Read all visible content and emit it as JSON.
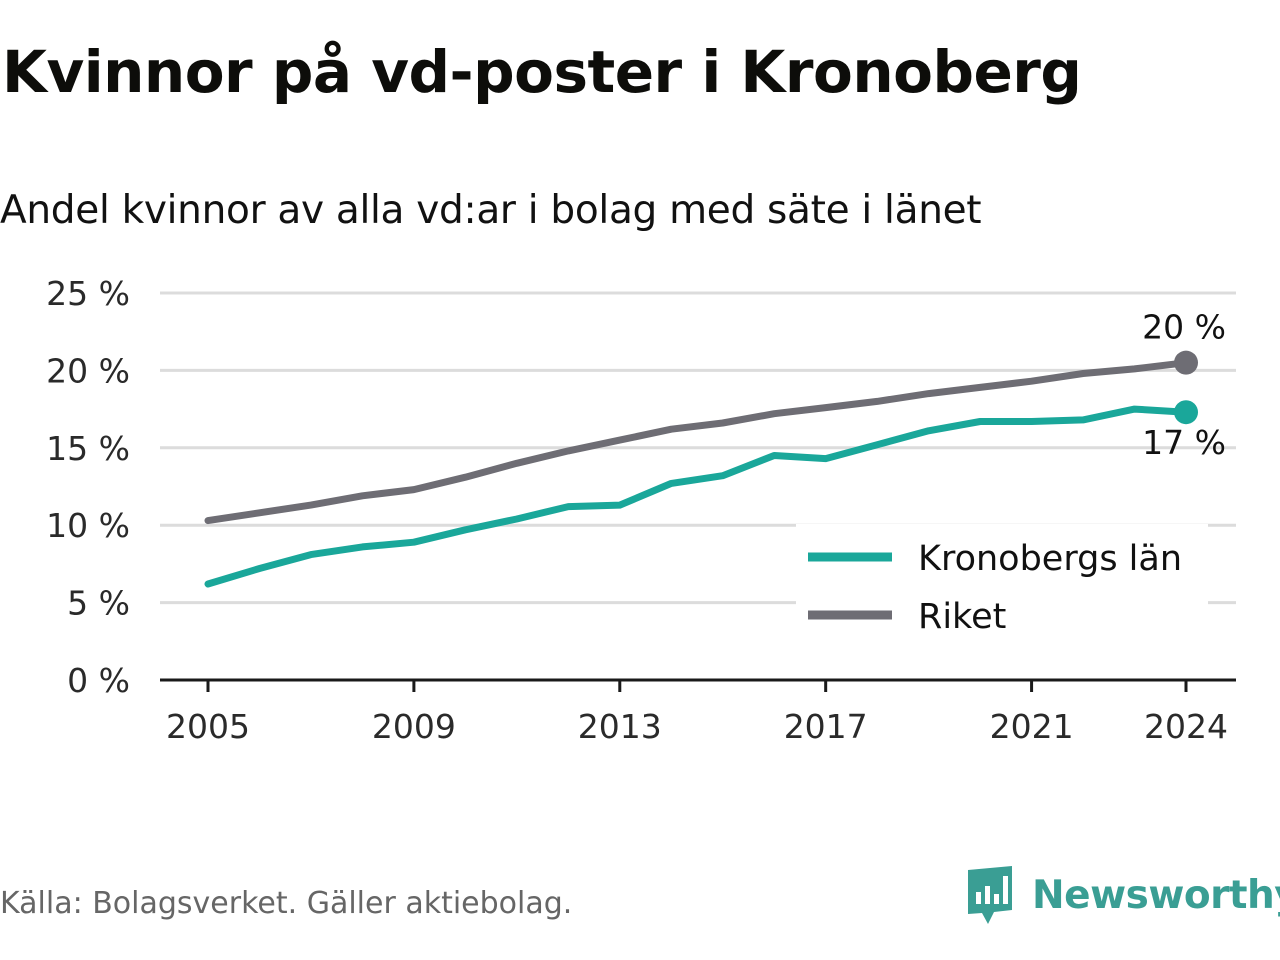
{
  "title": "Kvinnor på vd-poster i Kronoberg",
  "subtitle": "Andel kvinnor av alla vd:ar i bolag med säte i länet",
  "source": "Källa: Bolagsverket. Gäller aktiebolag.",
  "brand": {
    "name": "Newsworthy",
    "icon": "newsworthy-logo-icon",
    "color": "#3a9e94"
  },
  "chart_data": {
    "type": "line",
    "title": "Kvinnor på vd-poster i Kronoberg",
    "subtitle": "Andel kvinnor av alla vd:ar i bolag med säte i länet",
    "xlabel": "",
    "ylabel": "",
    "x": [
      2005,
      2006,
      2007,
      2008,
      2009,
      2010,
      2011,
      2012,
      2013,
      2014,
      2015,
      2016,
      2017,
      2018,
      2019,
      2020,
      2021,
      2022,
      2023,
      2024
    ],
    "xlim": [
      2004,
      2025
    ],
    "ylim": [
      0,
      25
    ],
    "x_ticks": [
      {
        "value": 2005,
        "label": "2005"
      },
      {
        "value": 2009,
        "label": "2009"
      },
      {
        "value": 2013,
        "label": "2013"
      },
      {
        "value": 2017,
        "label": "2017"
      },
      {
        "value": 2021,
        "label": "2021"
      },
      {
        "value": 2024,
        "label": "2024"
      }
    ],
    "y_ticks": [
      {
        "value": 0,
        "label": "0 %"
      },
      {
        "value": 5,
        "label": "5 %"
      },
      {
        "value": 10,
        "label": "10 %"
      },
      {
        "value": 15,
        "label": "15 %"
      },
      {
        "value": 20,
        "label": "20 %"
      },
      {
        "value": 25,
        "label": "25 %"
      }
    ],
    "grid": true,
    "legend": "bottom-right",
    "series": [
      {
        "name": "Kronobergs län",
        "color": "#1aa79a",
        "values": [
          6.2,
          7.2,
          8.1,
          8.6,
          8.9,
          9.7,
          10.4,
          11.2,
          11.3,
          12.7,
          13.2,
          14.5,
          14.3,
          15.2,
          16.1,
          16.7,
          16.7,
          16.8,
          17.5,
          17.3
        ],
        "end_label": "17 %"
      },
      {
        "name": "Riket",
        "color": "#6e6d74",
        "values": [
          10.3,
          10.8,
          11.3,
          11.9,
          12.3,
          13.1,
          14.0,
          14.8,
          15.5,
          16.2,
          16.6,
          17.2,
          17.6,
          18.0,
          18.5,
          18.9,
          19.3,
          19.8,
          20.1,
          20.5
        ],
        "end_label": "20 %"
      }
    ]
  }
}
